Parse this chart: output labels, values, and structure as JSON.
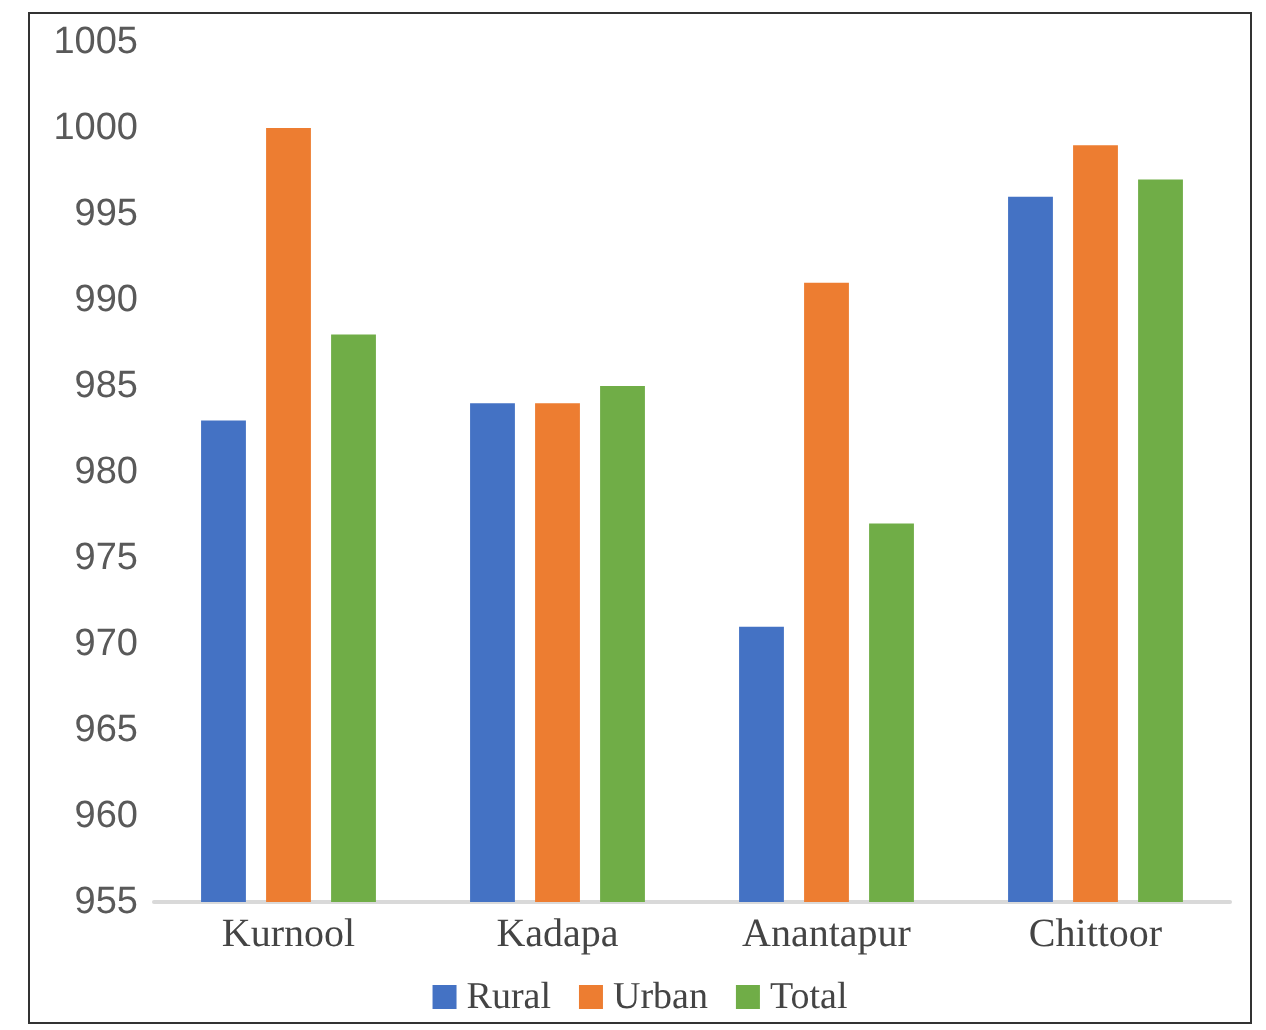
{
  "chart_data": {
    "type": "bar",
    "categories": [
      "Kurnool",
      "Kadapa",
      "Anantapur",
      "Chittoor"
    ],
    "series": [
      {
        "name": "Rural",
        "color": "#4472c4",
        "values": [
          983,
          984,
          971,
          996
        ]
      },
      {
        "name": "Urban",
        "color": "#ed7d31",
        "values": [
          1000,
          984,
          991,
          999
        ]
      },
      {
        "name": "Total",
        "color": "#70ad47",
        "values": [
          988,
          985,
          977,
          997
        ]
      }
    ],
    "ylim": [
      955,
      1005
    ],
    "yticks": [
      955,
      960,
      965,
      970,
      975,
      980,
      985,
      990,
      995,
      1000,
      1005
    ],
    "grid": false,
    "legend": "bottom"
  }
}
